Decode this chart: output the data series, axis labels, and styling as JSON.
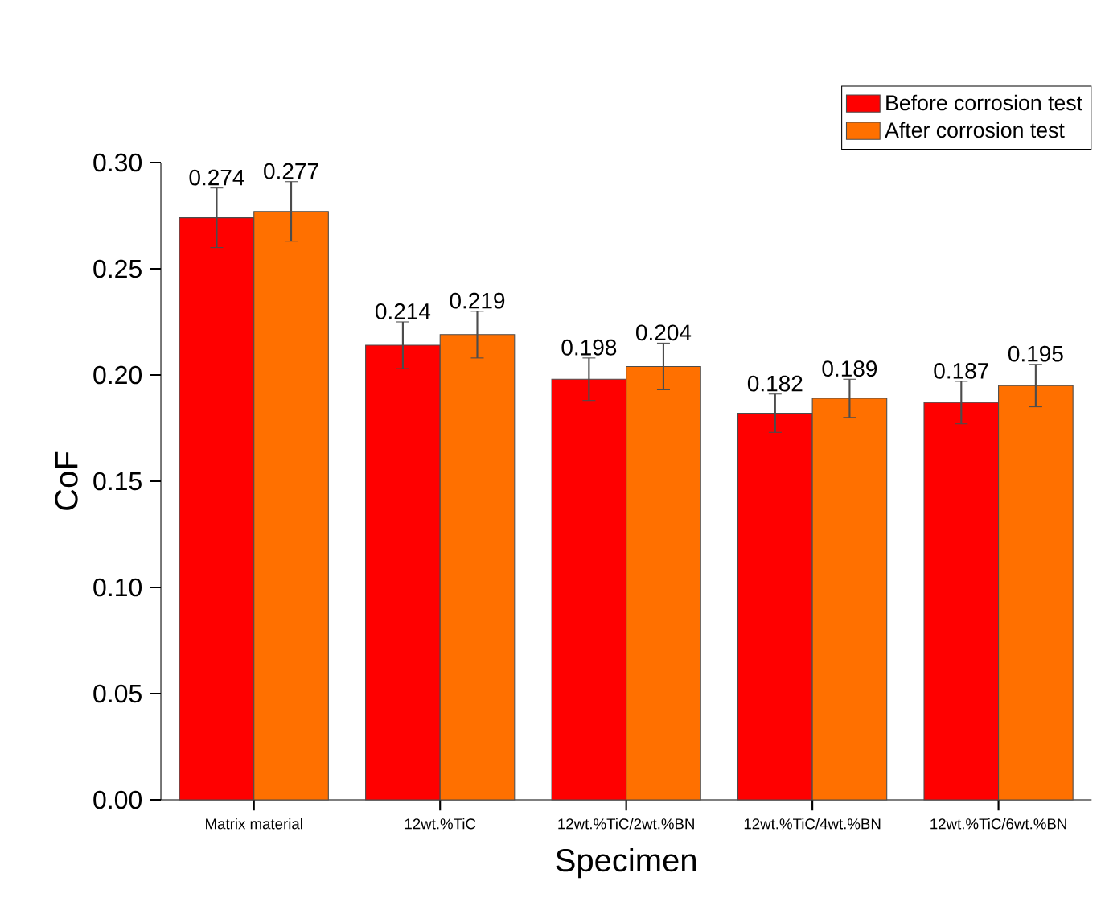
{
  "chart_data": {
    "type": "bar",
    "xlabel": "Specimen",
    "ylabel": "CoF",
    "categories": [
      "Matrix material",
      "12wt.%TiC",
      "12wt.%TiC/2wt.%BN",
      "12wt.%TiC/4wt.%BN",
      "12wt.%TiC/6wt.%BN"
    ],
    "series": [
      {
        "name": "Before corrosion test",
        "color": "#ff0000",
        "values": [
          0.274,
          0.214,
          0.198,
          0.182,
          0.187
        ],
        "errors": [
          0.014,
          0.011,
          0.01,
          0.009,
          0.01
        ]
      },
      {
        "name": "After corrosion test",
        "color": "#ff7000",
        "values": [
          0.277,
          0.219,
          0.204,
          0.189,
          0.195
        ],
        "errors": [
          0.014,
          0.011,
          0.011,
          0.009,
          0.01
        ]
      }
    ],
    "ylim": [
      0,
      0.3
    ],
    "yticks": [
      {
        "value": 0,
        "label": "0.00"
      },
      {
        "value": 0.05,
        "label": "0.05"
      },
      {
        "value": 0.1,
        "label": "0.10"
      },
      {
        "value": 0.15,
        "label": "0.15"
      },
      {
        "value": 0.2,
        "label": "0.20"
      },
      {
        "value": 0.25,
        "label": "0.25"
      },
      {
        "value": 0.3,
        "label": "0.30"
      }
    ],
    "data_labels": true,
    "legend": "top right",
    "grid": false
  }
}
